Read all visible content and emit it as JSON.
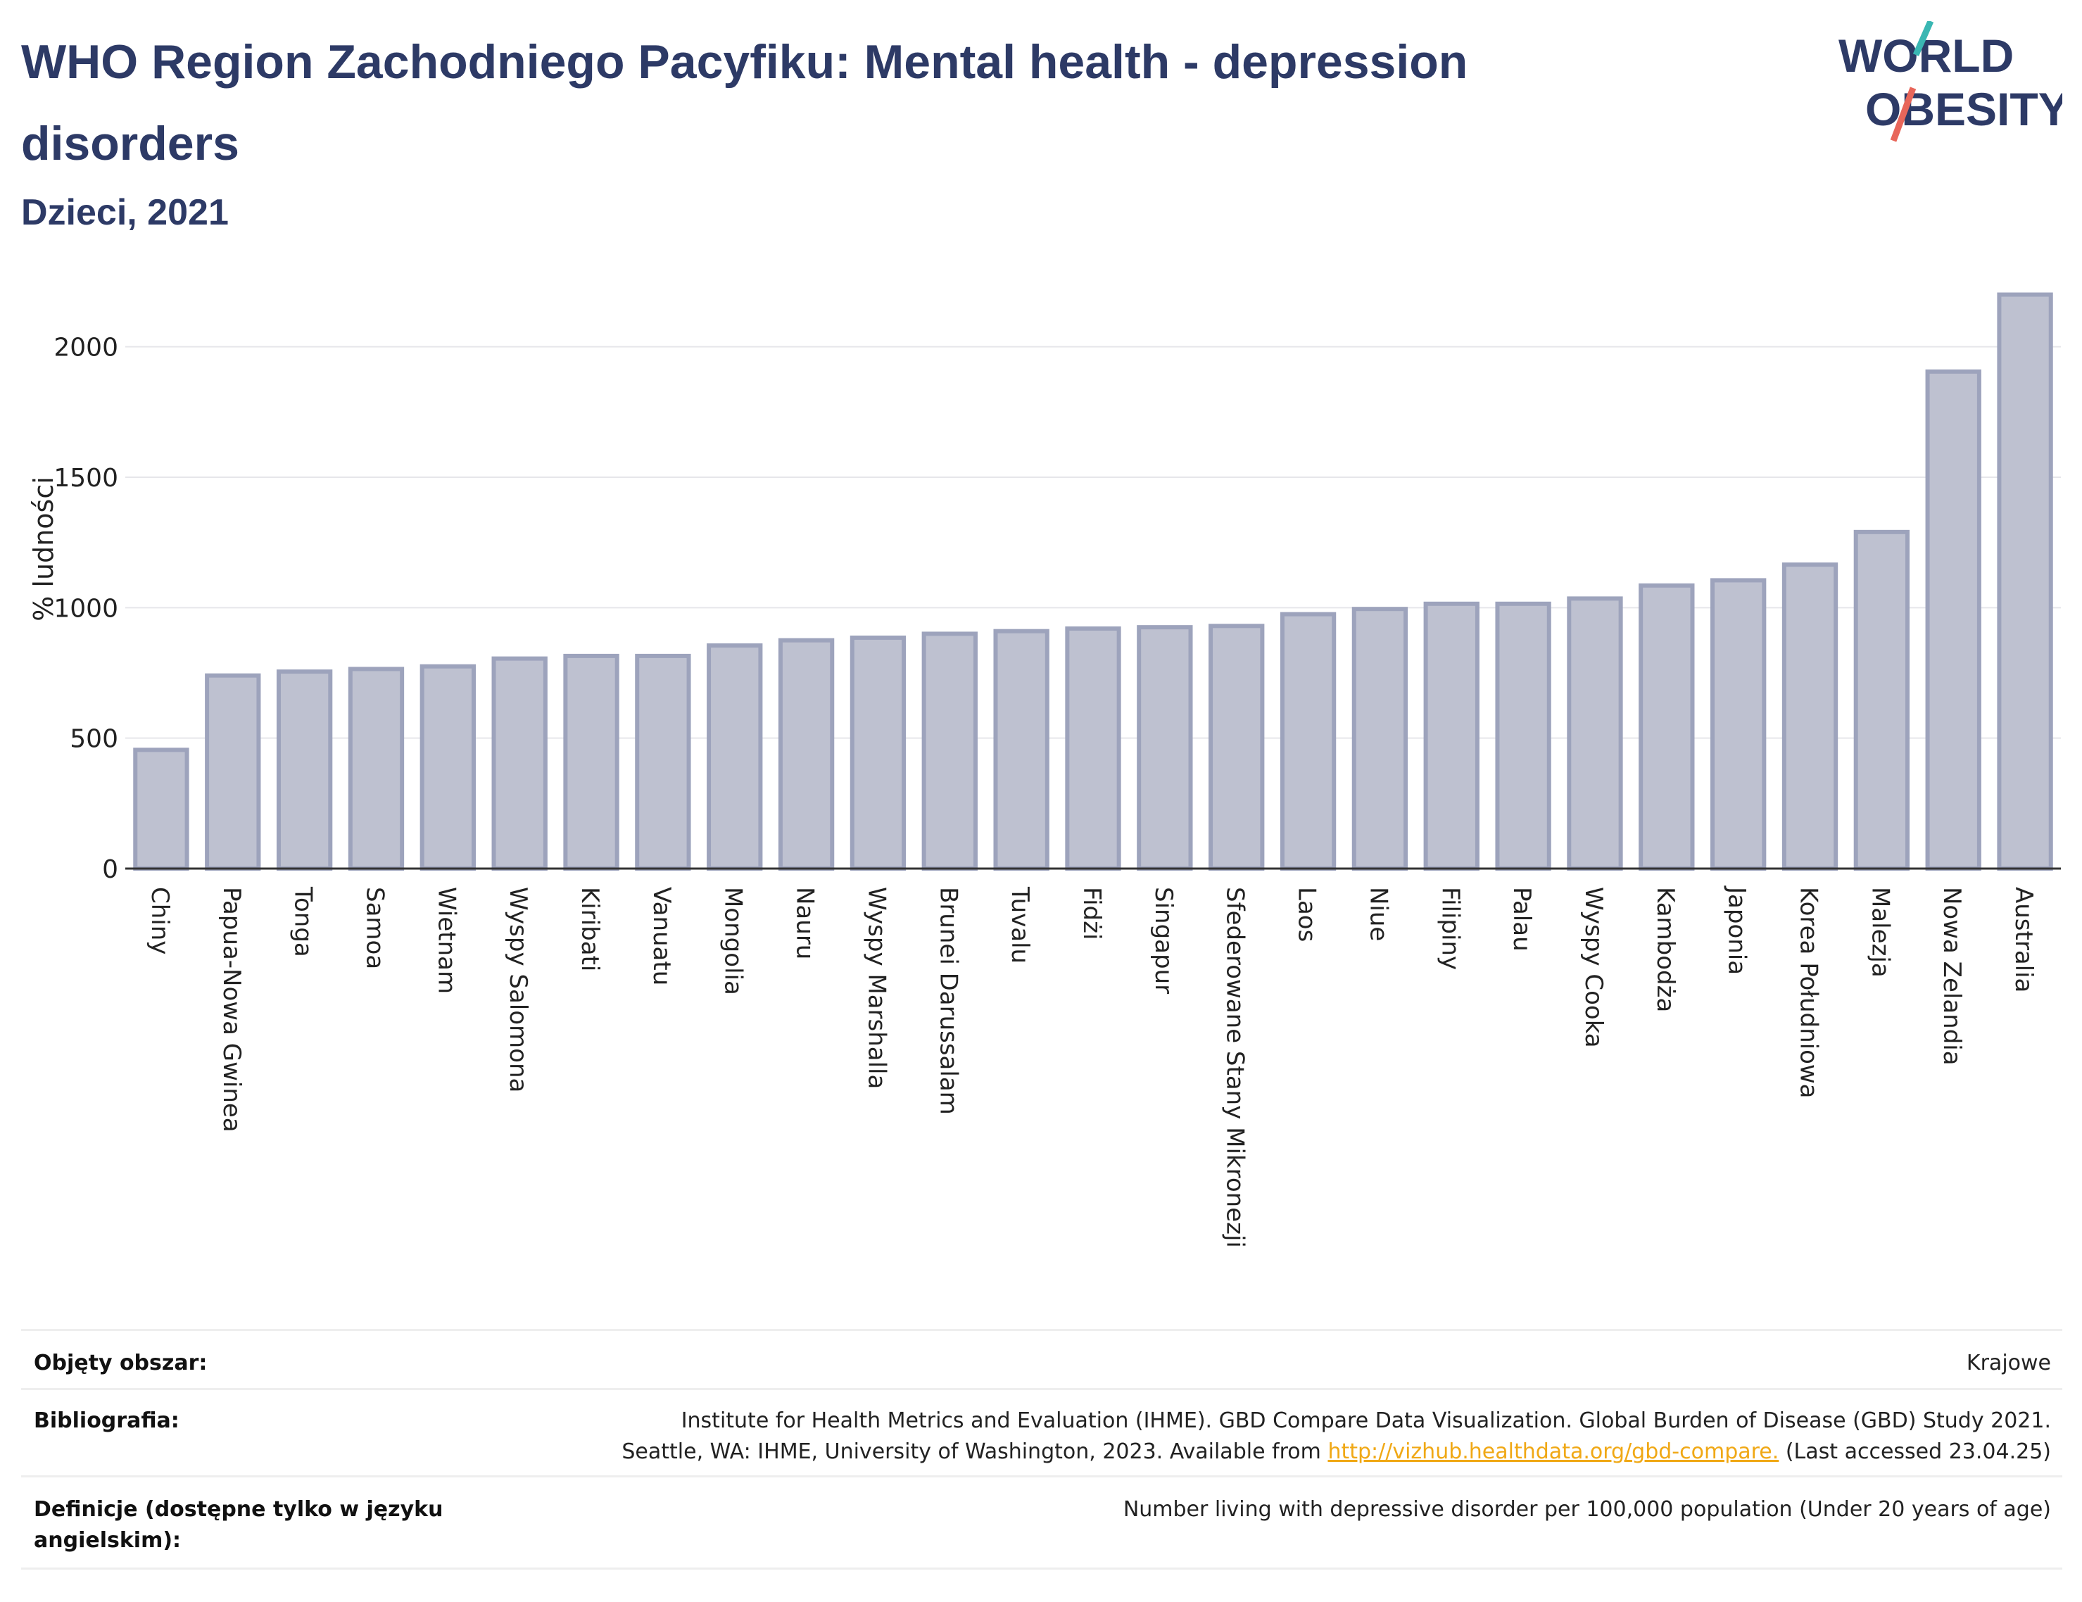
{
  "header": {
    "title": "WHO Region Zachodniego Pacyfiku: Mental health - depression disorders",
    "subtitle": "Dzieci, 2021",
    "logo_line1": "WORLD",
    "logo_line2": "OBESITY"
  },
  "colors": {
    "title": "#2d3a66",
    "bar_fill": "#bec1d0",
    "bar_stroke": "#9da3bc",
    "grid": "#e6e6ea",
    "link": "#f0a815",
    "logo_teal": "#3ab7b3",
    "logo_red": "#e8665a"
  },
  "chart_data": {
    "type": "bar",
    "ylabel": "% ludności",
    "xlabel": "",
    "ylim": [
      0,
      2250
    ],
    "yticks": [
      0,
      500,
      1000,
      1500,
      2000
    ],
    "grid": true,
    "categories": [
      "Chiny",
      "Papua-Nowa Gwinea",
      "Tonga",
      "Samoa",
      "Wietnam",
      "Wyspy Salomona",
      "Kiribati",
      "Vanuatu",
      "Mongolia",
      "Nauru",
      "Wyspy Marshalla",
      "Brunei Darussalam",
      "Tuvalu",
      "Fidżi",
      "Singapur",
      "Sfederowane Stany Mikronezji",
      "Laos",
      "Niue",
      "Filipiny",
      "Palau",
      "Wyspy Cooka",
      "Kambodża",
      "Japonia",
      "Korea Południowa",
      "Malezja",
      "Nowa Zelandia",
      "Australia"
    ],
    "values": [
      455,
      740,
      755,
      765,
      775,
      805,
      815,
      815,
      855,
      875,
      885,
      900,
      910,
      920,
      925,
      930,
      975,
      995,
      1015,
      1015,
      1035,
      1085,
      1105,
      1165,
      1290,
      1905,
      2200
    ]
  },
  "info": {
    "rows": [
      {
        "label": "Objęty obszar:",
        "value_lines": [
          "Krajowe"
        ]
      },
      {
        "label": "Bibliografia:",
        "value_lines": [
          "Institute for Health Metrics and Evaluation (IHME). GBD Compare Data Visualization. Global Burden of Disease (GBD) Study 2021.",
          "Seattle, WA: IHME, University of Washington, 2023. Available from"
        ],
        "link": "http://vizhub.healthdata.org/gbd-compare.",
        "after_link": "(Last accessed 23.04.25)"
      },
      {
        "label": "Definicje (dostępne tylko w języku angielskim):",
        "value_lines": [
          "Number living with depressive disorder per 100,000 population (Under 20 years of age)"
        ]
      }
    ]
  }
}
